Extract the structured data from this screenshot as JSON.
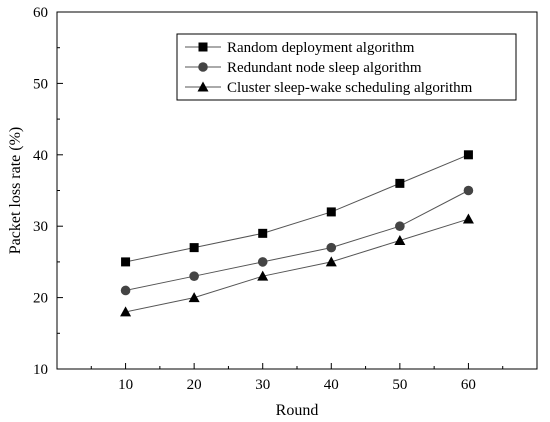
{
  "chart_data": {
    "type": "line",
    "title": "",
    "xlabel": "Round",
    "ylabel": "Packet loss rate (%)",
    "x": [
      10,
      20,
      30,
      40,
      50,
      60
    ],
    "xlim": [
      0,
      70
    ],
    "ylim": [
      10,
      60
    ],
    "xticks": [
      "10",
      "20",
      "30",
      "40",
      "50",
      "60"
    ],
    "yticks": [
      "10",
      "20",
      "30",
      "40",
      "50",
      "60"
    ],
    "grid": false,
    "legend_position": "top-right",
    "series": [
      {
        "name": "Random deployment algorithm",
        "marker": "square",
        "color": "#000000",
        "values": [
          25,
          27,
          29,
          32,
          36,
          40
        ]
      },
      {
        "name": "Redundant node sleep algorithm",
        "marker": "circle",
        "color": "#444444",
        "values": [
          21,
          23,
          25,
          27,
          30,
          35
        ]
      },
      {
        "name": "Cluster sleep-wake scheduling algorithm",
        "marker": "triangle",
        "color": "#000000",
        "values": [
          18,
          20,
          23,
          25,
          28,
          31
        ]
      }
    ]
  }
}
